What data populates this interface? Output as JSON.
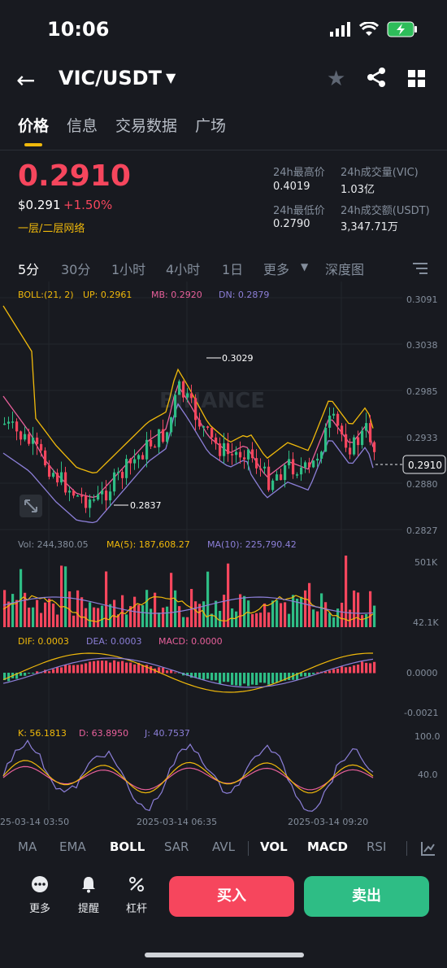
{
  "status_bar": {
    "time": "10:06"
  },
  "header": {
    "pair": "VIC/USDT"
  },
  "tabs": [
    {
      "label": "价格",
      "active": true
    },
    {
      "label": "信息",
      "active": false
    },
    {
      "label": "交易数据",
      "active": false
    },
    {
      "label": "广场",
      "active": false
    }
  ],
  "ticker": {
    "last_price": "0.2910",
    "usd_price": "$0.291",
    "change": "+1.50%",
    "network": "一层/二层网络",
    "high_label": "24h最高价",
    "high_value": "0.4019",
    "vol_label": "24h成交量(VIC)",
    "vol_value": "1.03亿",
    "low_label": "24h最低价",
    "low_value": "0.2790",
    "turnover_label": "24h成交额(USDT)",
    "turnover_value": "3,347.71万"
  },
  "timeframes": [
    "5分",
    "30分",
    "1小时",
    "4小时",
    "1日",
    "更多",
    "深度图"
  ],
  "boll": {
    "label": "BOLL:(21, 2)",
    "up": "UP: 0.2961",
    "mb": "MB: 0.2920",
    "dn": "DN: 0.2879",
    "axis": [
      "0.3091",
      "0.3038",
      "0.2985",
      "0.2933",
      "0.2880",
      "0.2827"
    ],
    "current": "0.2910",
    "high_mark": "0.3029",
    "low_mark": "0.2837",
    "watermark": "BINANCE"
  },
  "volume": {
    "vol": "Vol: 244,380.05",
    "ma5": "MA(5): 187,608.27",
    "ma10": "MA(10): 225,790.42",
    "axis_top": "501K",
    "axis_bottom": "42.1K"
  },
  "macd": {
    "dif": "DIF: 0.0003",
    "dea": "DEA: 0.0003",
    "macd": "MACD: 0.0000",
    "axis_mid": "0.0000",
    "axis_bottom": "-0.0021"
  },
  "kdj": {
    "k": "K: 56.1813",
    "d": "D: 63.8950",
    "j": "J: 40.7537",
    "axis_top": "100.0",
    "axis_mid": "40.0"
  },
  "time_axis": [
    "25-03-14 03:50",
    "2025-03-14 06:35",
    "2025-03-14 09:20"
  ],
  "indicators": [
    {
      "label": "MA",
      "on": false
    },
    {
      "label": "EMA",
      "on": false
    },
    {
      "label": "BOLL",
      "on": true
    },
    {
      "label": "SAR",
      "on": false
    },
    {
      "label": "AVL",
      "on": false
    },
    {
      "label": "VOL",
      "on": true
    },
    {
      "label": "MACD",
      "on": true
    },
    {
      "label": "RSI",
      "on": false
    }
  ],
  "bottom_bar": {
    "more": "更多",
    "alert": "提醒",
    "leverage": "杠杆",
    "buy": "买入",
    "sell": "卖出"
  },
  "colors": {
    "up": "#2ebd85",
    "down": "#f6465d",
    "accent": "#f0b90b"
  }
}
